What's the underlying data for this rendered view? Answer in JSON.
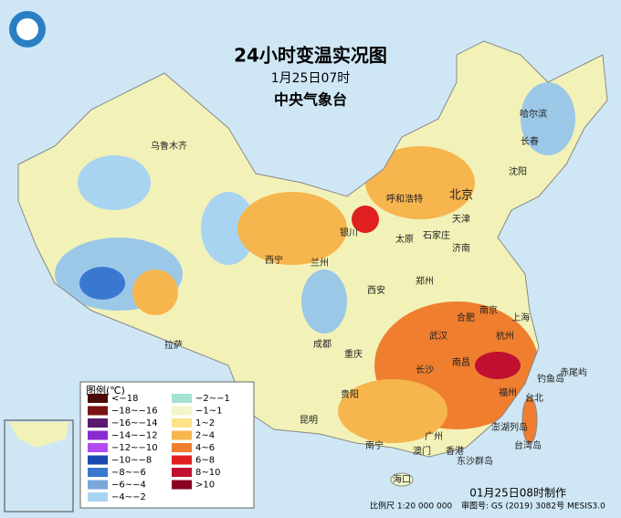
{
  "header": {
    "title": "24小时变温实况图",
    "subtitle": "1月25日07时",
    "agency": "中央气象台"
  },
  "legend": {
    "title": "图例(℃)",
    "items": [
      {
        "label": "<−18",
        "color": "#4a0a0a"
      },
      {
        "label": "−18~−16",
        "color": "#7a1212"
      },
      {
        "label": "−16~−14",
        "color": "#5a1a6e"
      },
      {
        "label": "−14~−12",
        "color": "#8a2ad0"
      },
      {
        "label": "−12~−10",
        "color": "#b448f2"
      },
      {
        "label": "−10~−8",
        "color": "#1a4ab0"
      },
      {
        "label": "−8~−6",
        "color": "#3a78d0"
      },
      {
        "label": "−6~−4",
        "color": "#7aa8d8"
      },
      {
        "label": "−4~−2",
        "color": "#a8d4f2"
      },
      {
        "label": "−2~−1",
        "color": "#a4e2d2"
      },
      {
        "label": "−1~1",
        "color": "#f2f6c8"
      },
      {
        "label": "1~2",
        "color": "#fbe38a"
      },
      {
        "label": "2~4",
        "color": "#f7b54e"
      },
      {
        "label": "4~6",
        "color": "#ef7e2e"
      },
      {
        "label": "6~8",
        "color": "#e02020"
      },
      {
        "label": "8~10",
        "color": "#c01030"
      },
      {
        "label": ">10",
        "color": "#8a0022"
      }
    ]
  },
  "cities": [
    "乌鲁木齐",
    "拉萨",
    "西宁",
    "兰州",
    "银川",
    "呼和浩特",
    "北京",
    "天津",
    "太原",
    "石家庄",
    "济南",
    "郑州",
    "西安",
    "成都",
    "重庆",
    "贵阳",
    "昆明",
    "南宁",
    "广州",
    "澳门",
    "香港",
    "海口",
    "长沙",
    "南昌",
    "武汉",
    "合肥",
    "南京",
    "上海",
    "杭州",
    "福州",
    "台北",
    "沈阳",
    "长春",
    "哈尔滨",
    "钓鱼岛",
    "赤尾屿",
    "澎湖列岛",
    "台湾岛",
    "东沙群岛"
  ],
  "footer": {
    "made": "01月25日08时制作",
    "scale": "比例尺 1:20 000 000",
    "review": "审图号: GS (2019) 3082号 MESIS3.0"
  }
}
